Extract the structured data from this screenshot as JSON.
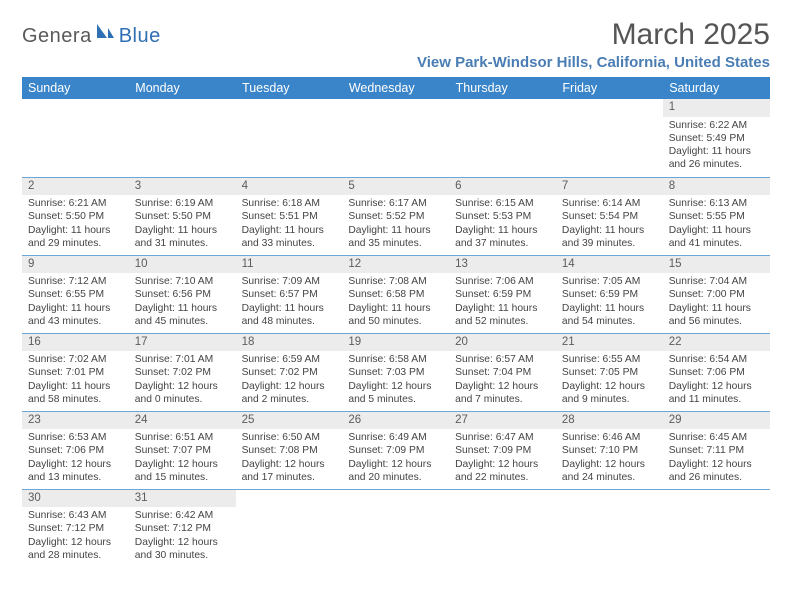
{
  "logo": {
    "text1": "Genera",
    "text2": "Blue"
  },
  "title": "March 2025",
  "location": "View Park-Windsor Hills, California, United States",
  "colors": {
    "header_bg": "#3a85c9",
    "header_text": "#ffffff",
    "daynum_bg": "#ececec",
    "border": "#6aa6d8",
    "title_color": "#555555",
    "location_color": "#4a7db4",
    "body_text": "#444444"
  },
  "typography": {
    "title_fontsize": 30,
    "location_fontsize": 15,
    "weekday_fontsize": 12.5,
    "daynum_fontsize": 11.5,
    "body_fontsize": 10.3
  },
  "weekdays": [
    "Sunday",
    "Monday",
    "Tuesday",
    "Wednesday",
    "Thursday",
    "Friday",
    "Saturday"
  ],
  "weeks": [
    [
      null,
      null,
      null,
      null,
      null,
      null,
      {
        "n": "1",
        "sunrise": "Sunrise: 6:22 AM",
        "sunset": "Sunset: 5:49 PM",
        "daylight": "Daylight: 11 hours and 26 minutes."
      }
    ],
    [
      {
        "n": "2",
        "sunrise": "Sunrise: 6:21 AM",
        "sunset": "Sunset: 5:50 PM",
        "daylight": "Daylight: 11 hours and 29 minutes."
      },
      {
        "n": "3",
        "sunrise": "Sunrise: 6:19 AM",
        "sunset": "Sunset: 5:50 PM",
        "daylight": "Daylight: 11 hours and 31 minutes."
      },
      {
        "n": "4",
        "sunrise": "Sunrise: 6:18 AM",
        "sunset": "Sunset: 5:51 PM",
        "daylight": "Daylight: 11 hours and 33 minutes."
      },
      {
        "n": "5",
        "sunrise": "Sunrise: 6:17 AM",
        "sunset": "Sunset: 5:52 PM",
        "daylight": "Daylight: 11 hours and 35 minutes."
      },
      {
        "n": "6",
        "sunrise": "Sunrise: 6:15 AM",
        "sunset": "Sunset: 5:53 PM",
        "daylight": "Daylight: 11 hours and 37 minutes."
      },
      {
        "n": "7",
        "sunrise": "Sunrise: 6:14 AM",
        "sunset": "Sunset: 5:54 PM",
        "daylight": "Daylight: 11 hours and 39 minutes."
      },
      {
        "n": "8",
        "sunrise": "Sunrise: 6:13 AM",
        "sunset": "Sunset: 5:55 PM",
        "daylight": "Daylight: 11 hours and 41 minutes."
      }
    ],
    [
      {
        "n": "9",
        "sunrise": "Sunrise: 7:12 AM",
        "sunset": "Sunset: 6:55 PM",
        "daylight": "Daylight: 11 hours and 43 minutes."
      },
      {
        "n": "10",
        "sunrise": "Sunrise: 7:10 AM",
        "sunset": "Sunset: 6:56 PM",
        "daylight": "Daylight: 11 hours and 45 minutes."
      },
      {
        "n": "11",
        "sunrise": "Sunrise: 7:09 AM",
        "sunset": "Sunset: 6:57 PM",
        "daylight": "Daylight: 11 hours and 48 minutes."
      },
      {
        "n": "12",
        "sunrise": "Sunrise: 7:08 AM",
        "sunset": "Sunset: 6:58 PM",
        "daylight": "Daylight: 11 hours and 50 minutes."
      },
      {
        "n": "13",
        "sunrise": "Sunrise: 7:06 AM",
        "sunset": "Sunset: 6:59 PM",
        "daylight": "Daylight: 11 hours and 52 minutes."
      },
      {
        "n": "14",
        "sunrise": "Sunrise: 7:05 AM",
        "sunset": "Sunset: 6:59 PM",
        "daylight": "Daylight: 11 hours and 54 minutes."
      },
      {
        "n": "15",
        "sunrise": "Sunrise: 7:04 AM",
        "sunset": "Sunset: 7:00 PM",
        "daylight": "Daylight: 11 hours and 56 minutes."
      }
    ],
    [
      {
        "n": "16",
        "sunrise": "Sunrise: 7:02 AM",
        "sunset": "Sunset: 7:01 PM",
        "daylight": "Daylight: 11 hours and 58 minutes."
      },
      {
        "n": "17",
        "sunrise": "Sunrise: 7:01 AM",
        "sunset": "Sunset: 7:02 PM",
        "daylight": "Daylight: 12 hours and 0 minutes."
      },
      {
        "n": "18",
        "sunrise": "Sunrise: 6:59 AM",
        "sunset": "Sunset: 7:02 PM",
        "daylight": "Daylight: 12 hours and 2 minutes."
      },
      {
        "n": "19",
        "sunrise": "Sunrise: 6:58 AM",
        "sunset": "Sunset: 7:03 PM",
        "daylight": "Daylight: 12 hours and 5 minutes."
      },
      {
        "n": "20",
        "sunrise": "Sunrise: 6:57 AM",
        "sunset": "Sunset: 7:04 PM",
        "daylight": "Daylight: 12 hours and 7 minutes."
      },
      {
        "n": "21",
        "sunrise": "Sunrise: 6:55 AM",
        "sunset": "Sunset: 7:05 PM",
        "daylight": "Daylight: 12 hours and 9 minutes."
      },
      {
        "n": "22",
        "sunrise": "Sunrise: 6:54 AM",
        "sunset": "Sunset: 7:06 PM",
        "daylight": "Daylight: 12 hours and 11 minutes."
      }
    ],
    [
      {
        "n": "23",
        "sunrise": "Sunrise: 6:53 AM",
        "sunset": "Sunset: 7:06 PM",
        "daylight": "Daylight: 12 hours and 13 minutes."
      },
      {
        "n": "24",
        "sunrise": "Sunrise: 6:51 AM",
        "sunset": "Sunset: 7:07 PM",
        "daylight": "Daylight: 12 hours and 15 minutes."
      },
      {
        "n": "25",
        "sunrise": "Sunrise: 6:50 AM",
        "sunset": "Sunset: 7:08 PM",
        "daylight": "Daylight: 12 hours and 17 minutes."
      },
      {
        "n": "26",
        "sunrise": "Sunrise: 6:49 AM",
        "sunset": "Sunset: 7:09 PM",
        "daylight": "Daylight: 12 hours and 20 minutes."
      },
      {
        "n": "27",
        "sunrise": "Sunrise: 6:47 AM",
        "sunset": "Sunset: 7:09 PM",
        "daylight": "Daylight: 12 hours and 22 minutes."
      },
      {
        "n": "28",
        "sunrise": "Sunrise: 6:46 AM",
        "sunset": "Sunset: 7:10 PM",
        "daylight": "Daylight: 12 hours and 24 minutes."
      },
      {
        "n": "29",
        "sunrise": "Sunrise: 6:45 AM",
        "sunset": "Sunset: 7:11 PM",
        "daylight": "Daylight: 12 hours and 26 minutes."
      }
    ],
    [
      {
        "n": "30",
        "sunrise": "Sunrise: 6:43 AM",
        "sunset": "Sunset: 7:12 PM",
        "daylight": "Daylight: 12 hours and 28 minutes."
      },
      {
        "n": "31",
        "sunrise": "Sunrise: 6:42 AM",
        "sunset": "Sunset: 7:12 PM",
        "daylight": "Daylight: 12 hours and 30 minutes."
      },
      null,
      null,
      null,
      null,
      null
    ]
  ]
}
